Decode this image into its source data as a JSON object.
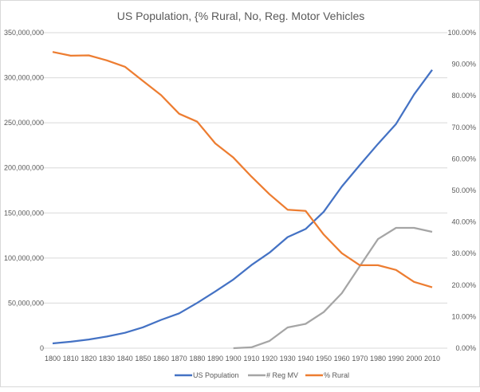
{
  "chart_data": {
    "type": "line",
    "title": "US Population, {% Rural, No, Reg. Motor Vehicles",
    "x": [
      1800,
      1810,
      1820,
      1830,
      1840,
      1850,
      1860,
      1870,
      1880,
      1890,
      1900,
      1910,
      1920,
      1930,
      1940,
      1950,
      1960,
      1970,
      1980,
      1990,
      2000,
      2010
    ],
    "x_tick_labels": [
      "1800",
      "1810",
      "1820",
      "1830",
      "1840",
      "1850",
      "1860",
      "1870",
      "1880",
      "1890",
      "1900",
      "1910",
      "1920",
      "1930",
      "1940",
      "1950",
      "1960",
      "1970",
      "1980",
      "1990",
      "2000",
      "2010"
    ],
    "y_left": {
      "min": 0,
      "max": 350000000,
      "tick_labels": [
        "0",
        "50,000,000",
        "100,000,000",
        "150,000,000",
        "200,000,000",
        "250,000,000",
        "300,000,000",
        "350,000,000"
      ]
    },
    "y_right": {
      "min": 0,
      "max": 100,
      "tick_labels": [
        "0.00%",
        "10.00%",
        "20.00%",
        "30.00%",
        "40.00%",
        "50.00%",
        "60.00%",
        "70.00%",
        "80.00%",
        "90.00%",
        "100.00%"
      ]
    },
    "grid": true,
    "legend_position": "bottom",
    "series": [
      {
        "name": "US Population",
        "axis": "left",
        "color": "#4472c4",
        "values": [
          5300000,
          7200000,
          9600000,
          12900000,
          17100000,
          23200000,
          31400000,
          38600000,
          50200000,
          62900000,
          76200000,
          92200000,
          106000000,
          123200000,
          132200000,
          151300000,
          179300000,
          203200000,
          226500000,
          248700000,
          281400000,
          308700000
        ]
      },
      {
        "name": "# Reg MV",
        "axis": "left",
        "color": "#a5a5a5",
        "values": [
          null,
          null,
          null,
          null,
          null,
          null,
          null,
          null,
          null,
          null,
          0,
          1000000,
          8000000,
          23000000,
          27000000,
          40000000,
          61000000,
          91000000,
          121000000,
          133500000,
          133500000,
          129000000
        ]
      },
      {
        "name": "% Rural",
        "axis": "right",
        "color": "#ed7d31",
        "values": [
          93.9,
          92.7,
          92.8,
          91.2,
          89.2,
          84.7,
          80.2,
          74.3,
          71.8,
          64.9,
          60.4,
          54.4,
          48.8,
          43.9,
          43.5,
          36.0,
          30.1,
          26.3,
          26.3,
          24.8,
          21.0,
          19.3
        ]
      }
    ]
  }
}
